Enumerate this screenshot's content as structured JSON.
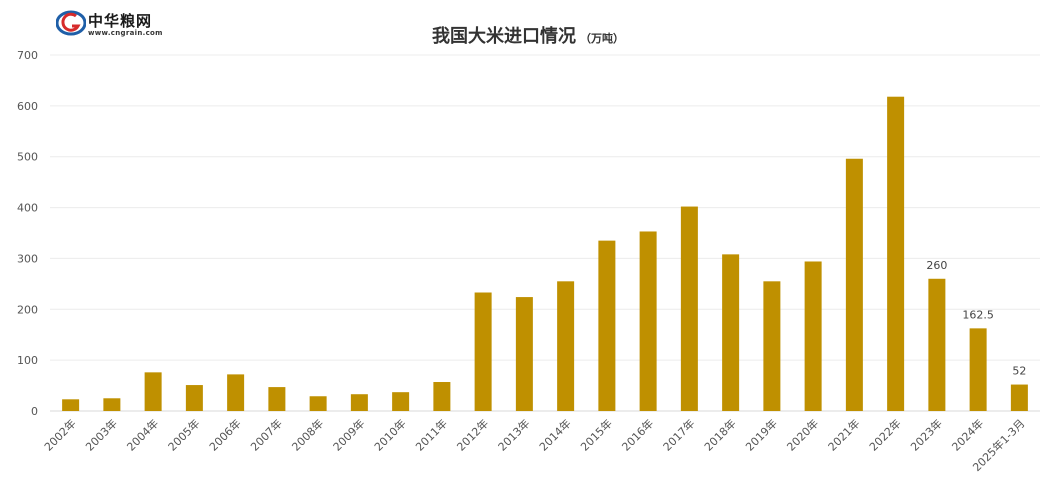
{
  "logo": {
    "name": "中华粮网",
    "url": "www.cngrain.com"
  },
  "chart_data": {
    "type": "bar",
    "title": "我国大米进口情况",
    "subtitle": "（万吨）",
    "xlabel": "",
    "ylabel": "",
    "ylim": [
      0,
      700
    ],
    "yticks": [
      0,
      100,
      200,
      300,
      400,
      500,
      600,
      700
    ],
    "grid": true,
    "legend": "none",
    "bar_color": "#BF9000",
    "categories": [
      "2002年",
      "2003年",
      "2004年",
      "2005年",
      "2006年",
      "2007年",
      "2008年",
      "2009年",
      "2010年",
      "2011年",
      "2012年",
      "2013年",
      "2014年",
      "2015年",
      "2016年",
      "2017年",
      "2018年",
      "2019年",
      "2020年",
      "2021年",
      "2022年",
      "2023年",
      "2024年",
      "2025年1-3月"
    ],
    "values": [
      23,
      25,
      76,
      51,
      72,
      47,
      29,
      33,
      37,
      57,
      233,
      224,
      255,
      335,
      353,
      402,
      308,
      255,
      294,
      496,
      618,
      260,
      162.5,
      52
    ],
    "data_labels": [
      null,
      null,
      null,
      null,
      null,
      null,
      null,
      null,
      null,
      null,
      null,
      null,
      null,
      null,
      null,
      null,
      null,
      null,
      null,
      null,
      null,
      "260",
      "162.5",
      "52"
    ]
  }
}
